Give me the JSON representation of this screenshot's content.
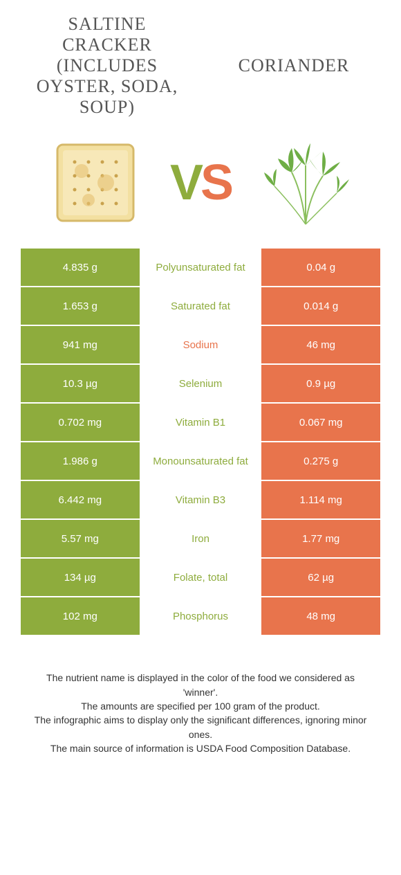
{
  "colors": {
    "left": "#8eac3d",
    "right": "#e8744c",
    "title": "#555555"
  },
  "header": {
    "left_title": "SALTINE CRACKER (INCLUDES OYSTER, SODA, SOUP)",
    "right_title": "CORIANDER",
    "vs_v": "V",
    "vs_s": "S"
  },
  "rows": [
    {
      "left": "4.835 g",
      "label": "Polyunsaturated fat",
      "right": "0.04 g",
      "winner": "left"
    },
    {
      "left": "1.653 g",
      "label": "Saturated fat",
      "right": "0.014 g",
      "winner": "left"
    },
    {
      "left": "941 mg",
      "label": "Sodium",
      "right": "46 mg",
      "winner": "right"
    },
    {
      "left": "10.3 µg",
      "label": "Selenium",
      "right": "0.9 µg",
      "winner": "left"
    },
    {
      "left": "0.702 mg",
      "label": "Vitamin B1",
      "right": "0.067 mg",
      "winner": "left"
    },
    {
      "left": "1.986 g",
      "label": "Monounsaturated fat",
      "right": "0.275 g",
      "winner": "left"
    },
    {
      "left": "6.442 mg",
      "label": "Vitamin B3",
      "right": "1.114 mg",
      "winner": "left"
    },
    {
      "left": "5.57 mg",
      "label": "Iron",
      "right": "1.77 mg",
      "winner": "left"
    },
    {
      "left": "134 µg",
      "label": "Folate, total",
      "right": "62 µg",
      "winner": "left"
    },
    {
      "left": "102 mg",
      "label": "Phosphorus",
      "right": "48 mg",
      "winner": "left"
    }
  ],
  "footnotes": [
    "The nutrient name is displayed in the color of the food we considered as 'winner'.",
    "The amounts are specified per 100 gram of the product.",
    "The infographic aims to display only the significant differences, ignoring minor ones.",
    "The main source of information is USDA Food Composition Database."
  ]
}
